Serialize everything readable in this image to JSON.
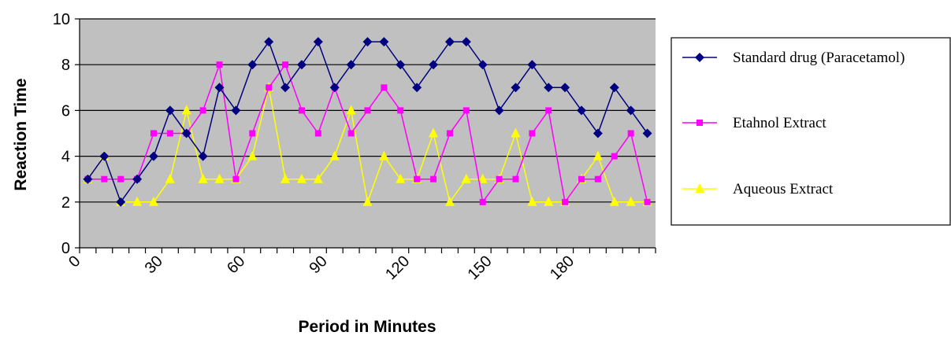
{
  "chart_data": {
    "type": "line",
    "xlabel": "Period in Minutes",
    "ylabel": "Reaction Time",
    "ylim": [
      0,
      10
    ],
    "xlim": [
      0,
      210
    ],
    "yticks": [
      0,
      2,
      4,
      6,
      8,
      10
    ],
    "xticks": [
      0,
      30,
      60,
      90,
      120,
      150,
      180
    ],
    "grid": "horizontal",
    "legend_position": "right",
    "plot_background": "#c0c0c0",
    "x": [
      3,
      9,
      15,
      21,
      27,
      33,
      39,
      45,
      51,
      57,
      63,
      69,
      75,
      81,
      87,
      93,
      99,
      105,
      111,
      117,
      123,
      129,
      135,
      141,
      147,
      153,
      159,
      165,
      171,
      177,
      183,
      189,
      195,
      201,
      207
    ],
    "series": [
      {
        "name": "Standard drug (Paracetamol)",
        "color": "#000080",
        "marker": "diamond",
        "values": [
          3,
          4,
          2,
          3,
          4,
          6,
          5,
          4,
          7,
          6,
          8,
          9,
          7,
          8,
          9,
          7,
          8,
          9,
          9,
          8,
          7,
          8,
          9,
          9,
          8,
          6,
          7,
          8,
          7,
          7,
          6,
          5,
          7,
          6,
          5
        ]
      },
      {
        "name": "Etahnol Extract",
        "color": "#ff00ff",
        "marker": "square",
        "values": [
          3,
          3,
          3,
          3,
          5,
          5,
          5,
          6,
          8,
          3,
          5,
          7,
          8,
          6,
          5,
          7,
          5,
          6,
          7,
          6,
          3,
          3,
          5,
          6,
          2,
          3,
          3,
          5,
          6,
          2,
          3,
          3,
          4,
          5,
          2
        ]
      },
      {
        "name": "Aqueous Extract",
        "color": "#ffff00",
        "marker": "triangle",
        "values": [
          3,
          4,
          2,
          2,
          2,
          3,
          6,
          3,
          3,
          3,
          4,
          7,
          3,
          3,
          3,
          4,
          6,
          2,
          4,
          3,
          3,
          5,
          2,
          3,
          3,
          3,
          5,
          2,
          2,
          2,
          3,
          4,
          2,
          2,
          2
        ]
      }
    ]
  }
}
